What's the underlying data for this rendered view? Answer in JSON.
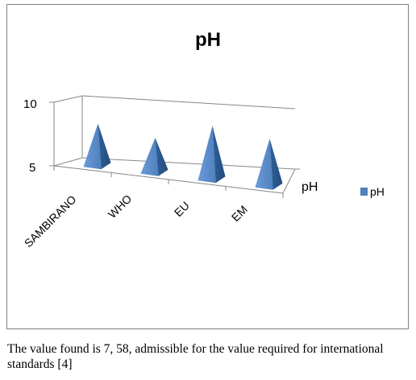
{
  "chart_data": {
    "type": "bar",
    "subtype": "3d-pyramid",
    "title": "pH",
    "categories": [
      "SAMBIRANO",
      "WHO",
      "EU",
      "EM"
    ],
    "series": [
      {
        "name": "pH",
        "values": [
          7.58,
          7.0,
          8.5,
          8.0
        ]
      }
    ],
    "depth_axis_label": "pH",
    "yticks": [
      5,
      10
    ],
    "ylim": [
      5,
      10
    ],
    "legend_position": "right",
    "color": "#4f81bd"
  },
  "caption": "The value found is 7, 58, admissible for the value required for international standards [4]"
}
